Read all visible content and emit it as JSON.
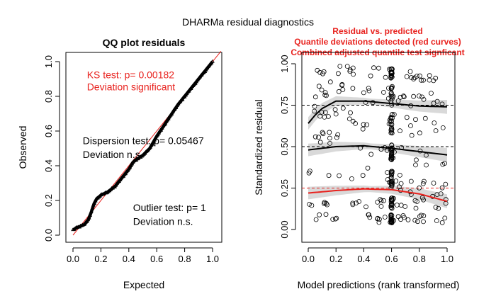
{
  "figure": {
    "title": "DHARMa residual diagnostics"
  },
  "colors": {
    "accent": "#e8221e",
    "ink": "#000000",
    "band": "#cfcfcf",
    "refline": "#e8221e"
  },
  "chart_data": [
    {
      "type": "scatter",
      "title": "QQ plot residuals",
      "xlabel": "Expected",
      "ylabel": "Observed",
      "xlim": [
        0,
        1
      ],
      "ylim": [
        0,
        1
      ],
      "x_ticks": [
        "0.0",
        "0.2",
        "0.4",
        "0.6",
        "0.8",
        "1.0"
      ],
      "y_ticks": [
        "0.0",
        "0.2",
        "0.4",
        "0.6",
        "0.8",
        "1.0"
      ],
      "reference_line": {
        "slope": 1,
        "intercept": 0,
        "color": "#e8221e"
      },
      "qq_curve": {
        "x": [
          0.0,
          0.02,
          0.05,
          0.08,
          0.11,
          0.13,
          0.15,
          0.17,
          0.2,
          0.25,
          0.3,
          0.35,
          0.4,
          0.43,
          0.46,
          0.5,
          0.55,
          0.6,
          0.65,
          0.7,
          0.75,
          0.8,
          0.85,
          0.9,
          0.95,
          1.0
        ],
        "y": [
          0.03,
          0.04,
          0.05,
          0.06,
          0.09,
          0.13,
          0.18,
          0.21,
          0.23,
          0.25,
          0.28,
          0.33,
          0.38,
          0.42,
          0.44,
          0.46,
          0.5,
          0.57,
          0.63,
          0.69,
          0.75,
          0.8,
          0.85,
          0.9,
          0.95,
          1.0
        ]
      },
      "annotations": [
        {
          "text": "KS test: p= 0.00182",
          "color": "#e8221e",
          "x": 0.1,
          "y": 0.925
        },
        {
          "text": "Deviation  significant",
          "color": "#e8221e",
          "x": 0.1,
          "y": 0.855
        },
        {
          "text": "Dispersion test: p= 0.05467",
          "color": "#000000",
          "x": 0.07,
          "y": 0.545
        },
        {
          "text": "Deviation  n.s.",
          "color": "#000000",
          "x": 0.07,
          "y": 0.465
        },
        {
          "text": "Outlier test: p= 1",
          "color": "#000000",
          "x": 0.43,
          "y": 0.16
        },
        {
          "text": "Deviation  n.s.",
          "color": "#000000",
          "x": 0.43,
          "y": 0.08
        }
      ]
    },
    {
      "type": "scatter",
      "title_lines": [
        "Residual vs. predicted",
        "Quantile deviations detected (red curves)",
        "Combined adjusted quantile test signficant"
      ],
      "title_color": "#e8221e",
      "xlabel": "Model predictions (rank transformed)",
      "ylabel": "Standardized residual",
      "xlim": [
        0,
        1
      ],
      "ylim": [
        0,
        1
      ],
      "x_ticks": [
        "0.0",
        "0.2",
        "0.4",
        "0.6",
        "0.8",
        "1.0"
      ],
      "y_ticks": [
        "0.00",
        "0.25",
        "0.50",
        "0.75",
        "1.00"
      ],
      "reference_lines": [
        {
          "y": 0.25,
          "color": "#e8221e"
        },
        {
          "y": 0.5,
          "color": "#000000"
        },
        {
          "y": 0.75,
          "color": "#000000"
        }
      ],
      "quantile_curves": [
        {
          "quantile": 0.25,
          "color": "#e8221e",
          "x": [
            0.0,
            0.2,
            0.4,
            0.6,
            0.8,
            1.0
          ],
          "y": [
            0.22,
            0.235,
            0.245,
            0.24,
            0.215,
            0.17
          ]
        },
        {
          "quantile": 0.5,
          "color": "#000000",
          "x": [
            0.0,
            0.2,
            0.4,
            0.6,
            0.8,
            1.0
          ],
          "y": [
            0.48,
            0.5,
            0.505,
            0.49,
            0.47,
            0.45
          ]
        },
        {
          "quantile": 0.75,
          "color": "#000000",
          "x": [
            0.0,
            0.05,
            0.1,
            0.2,
            0.4,
            0.6,
            0.8,
            1.0
          ],
          "y": [
            0.64,
            0.69,
            0.73,
            0.775,
            0.775,
            0.76,
            0.745,
            0.74
          ]
        }
      ],
      "point_bands": [
        {
          "x0": 0.0,
          "y0": 0.16,
          "x1": 1.0,
          "y1": 0.16,
          "spread": 0.035
        },
        {
          "x0": 0.05,
          "y0": 0.07,
          "x1": 1.0,
          "y1": 0.06,
          "spread": 0.025
        },
        {
          "x0": 0.0,
          "y0": 0.4,
          "x1": 1.0,
          "y1": 0.22,
          "spread": 0.06
        },
        {
          "x0": 0.05,
          "y0": 0.56,
          "x1": 1.0,
          "y1": 0.4,
          "spread": 0.05
        },
        {
          "x0": 0.0,
          "y0": 0.7,
          "x1": 1.0,
          "y1": 0.6,
          "spread": 0.06
        },
        {
          "x0": 0.05,
          "y0": 0.85,
          "x1": 1.0,
          "y1": 0.78,
          "spread": 0.06
        },
        {
          "x0": 0.05,
          "y0": 0.97,
          "x1": 1.0,
          "y1": 0.92,
          "spread": 0.03
        }
      ]
    }
  ]
}
